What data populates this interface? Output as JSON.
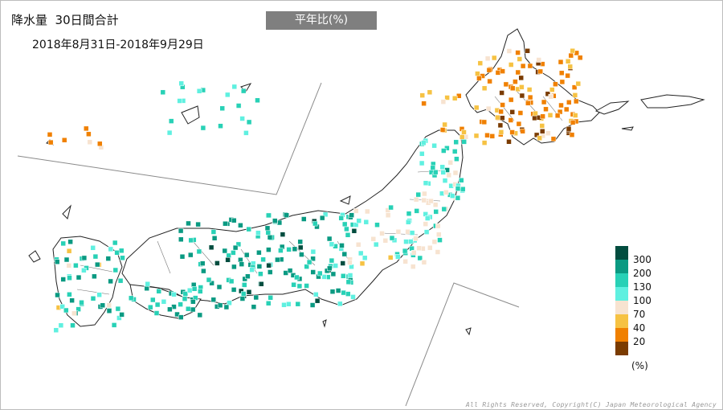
{
  "title": "降水量  30日間合計",
  "period": "2018年8月31日-2018年9月29日",
  "mode_label": "平年比(%)",
  "legend": {
    "unit": "(%)",
    "colors": [
      "#024d3f",
      "#0a9a82",
      "#28d1b6",
      "#5ff0e0",
      "#f7e3d0",
      "#f6c243",
      "#f08000",
      "#7a3b00"
    ],
    "thresholds": [
      "300",
      "200",
      "130",
      "100",
      "70",
      "40",
      "20"
    ]
  },
  "copyright": "All Rights Reserved, Copyright(C) Japan Meteorological Agency"
}
